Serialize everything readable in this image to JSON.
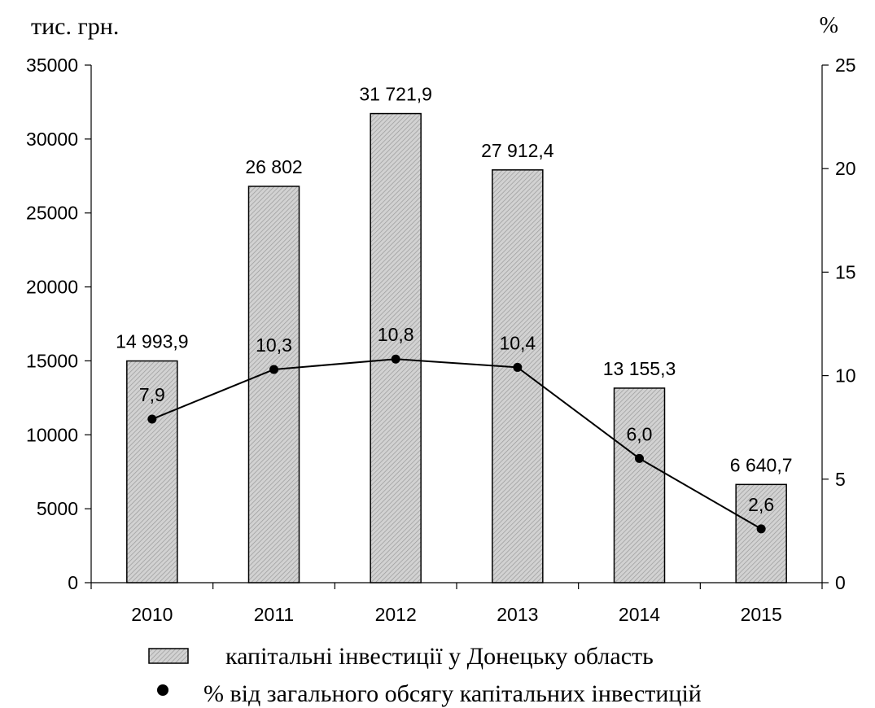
{
  "chart_data": {
    "type": "bar",
    "categories": [
      "2010",
      "2011",
      "2012",
      "2013",
      "2014",
      "2015"
    ],
    "series": [
      {
        "name": "капітальні інвестиції у Донецьку область",
        "type": "bar",
        "axis": "left",
        "values": [
          14993.9,
          26802,
          31721.9,
          27912.4,
          13155.3,
          6640.7
        ],
        "labels": [
          "14 993,9",
          "26 802",
          "31 721,9",
          "27 912,4",
          "13 155,3",
          "6 640,7"
        ]
      },
      {
        "name": "%  від загального обсягу капітальних інвестицій",
        "type": "line",
        "axis": "right",
        "values": [
          7.9,
          10.3,
          10.8,
          10.4,
          6.0,
          2.6
        ],
        "labels": [
          "7,9",
          "10,3",
          "10,8",
          "10,4",
          "6,0",
          "2,6"
        ]
      }
    ],
    "ylabel": "тис. грн.",
    "ylabel_right": "%",
    "ylim": [
      0,
      35000
    ],
    "yticks": [
      "0",
      "5000",
      "10000",
      "15000",
      "20000",
      "25000",
      "30000",
      "35000"
    ],
    "ylim_right": [
      0,
      25
    ],
    "yticks_right": [
      "0",
      "5",
      "10",
      "15",
      "20",
      "25"
    ],
    "grid": false,
    "legend_position": "bottom",
    "colors": {
      "bar_fill": "#c8c8c8",
      "bar_stroke": "#000000",
      "line": "#000000",
      "marker": "#000000"
    }
  }
}
